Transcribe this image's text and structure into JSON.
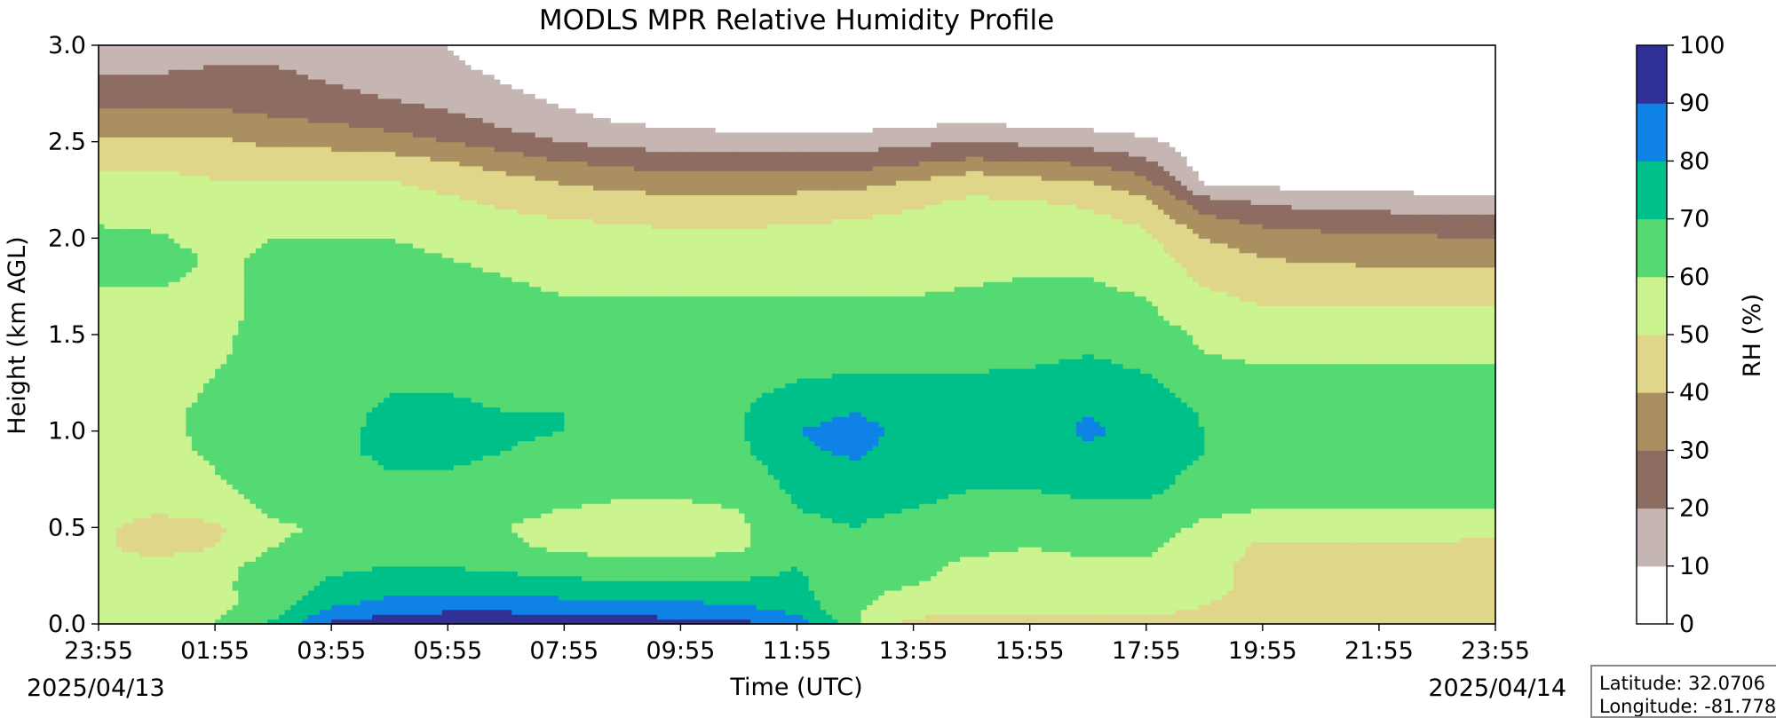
{
  "chart_data": {
    "type": "heatmap",
    "title": "MODLS MPR Relative Humidity Profile",
    "xlabel": "Time (UTC)",
    "ylabel": "Height (km AGL)",
    "x_ticks": [
      "23:55",
      "01:55",
      "03:55",
      "05:55",
      "07:55",
      "09:55",
      "11:55",
      "13:55",
      "15:55",
      "17:55",
      "19:55",
      "21:55",
      "23:55"
    ],
    "y_ticks": [
      "0.0",
      "0.5",
      "1.0",
      "1.5",
      "2.0",
      "2.5",
      "3.0"
    ],
    "xlim_hours": [
      0,
      24
    ],
    "ylim": [
      0,
      3.0
    ],
    "start_date": "2025/04/13",
    "end_date": "2025/04/14",
    "colorbar": {
      "label": "RH (%)",
      "ticks": [
        "0",
        "10",
        "20",
        "30",
        "40",
        "50",
        "60",
        "70",
        "80",
        "90",
        "100"
      ],
      "levels": [
        0,
        10,
        20,
        30,
        40,
        50,
        60,
        70,
        80,
        90,
        100
      ],
      "colors": [
        "#ffffff",
        "#c6b6b3",
        "#8d6c62",
        "#aa8f61",
        "#e0d68a",
        "#cbf38f",
        "#55da73",
        "#00c08a",
        "#0f82e6",
        "#303096"
      ]
    },
    "rh_field": {
      "heights_km": [
        0,
        0.05,
        0.1,
        0.2,
        0.3,
        0.4,
        0.5,
        0.6,
        0.7,
        0.8,
        0.9,
        1.0,
        1.1,
        1.2,
        1.3,
        1.4,
        1.5,
        1.6,
        1.7,
        1.8,
        1.9,
        2.0,
        2.1,
        2.2,
        2.3,
        2.4,
        2.5,
        2.6,
        2.7,
        2.8,
        2.9,
        3.0
      ],
      "times_hours": [
        0,
        1,
        2,
        3,
        4,
        5,
        6,
        7,
        8,
        9,
        10,
        11,
        12,
        13,
        14,
        15,
        16,
        17,
        18,
        19,
        20,
        21,
        22,
        23,
        24
      ],
      "rh_percent": [
        [
          55,
          55,
          60,
          72,
          92,
          95,
          96,
          96,
          95,
          94,
          93,
          93,
          88,
          62,
          46,
          43,
          43,
          42,
          42,
          42,
          42,
          42,
          42,
          42,
          45
        ],
        [
          55,
          55,
          58,
          68,
          85,
          90,
          92,
          92,
          90,
          90,
          88,
          86,
          80,
          60,
          52,
          50,
          50,
          50,
          50,
          48,
          48,
          48,
          48,
          48,
          48
        ],
        [
          55,
          55,
          57,
          65,
          78,
          84,
          85,
          85,
          84,
          82,
          82,
          80,
          75,
          62,
          55,
          55,
          55,
          55,
          55,
          50,
          48,
          48,
          48,
          48,
          48
        ],
        [
          55,
          56,
          58,
          64,
          72,
          75,
          75,
          74,
          73,
          72,
          72,
          72,
          72,
          62,
          60,
          58,
          55,
          57,
          60,
          52,
          48,
          48,
          48,
          48,
          48
        ],
        [
          55,
          55,
          57,
          64,
          68,
          70,
          70,
          68,
          66,
          64,
          64,
          66,
          70,
          65,
          62,
          58,
          56,
          58,
          58,
          52,
          48,
          48,
          48,
          48,
          46
        ],
        [
          52,
          45,
          50,
          60,
          63,
          65,
          65,
          62,
          58,
          55,
          55,
          58,
          68,
          68,
          64,
          62,
          60,
          62,
          62,
          55,
          48,
          48,
          48,
          48,
          45
        ],
        [
          52,
          45,
          48,
          58,
          62,
          64,
          64,
          60,
          56,
          55,
          55,
          58,
          68,
          70,
          66,
          64,
          62,
          64,
          64,
          58,
          56,
          56,
          56,
          56,
          55
        ],
        [
          55,
          52,
          55,
          62,
          65,
          66,
          66,
          63,
          60,
          58,
          58,
          60,
          70,
          72,
          70,
          68,
          66,
          68,
          68,
          62,
          60,
          60,
          60,
          60,
          60
        ],
        [
          56,
          56,
          58,
          64,
          66,
          68,
          68,
          66,
          64,
          62,
          62,
          64,
          72,
          74,
          72,
          70,
          70,
          72,
          72,
          66,
          64,
          64,
          64,
          64,
          64
        ],
        [
          57,
          57,
          60,
          65,
          67,
          70,
          70,
          68,
          66,
          65,
          65,
          66,
          74,
          78,
          74,
          72,
          72,
          74,
          74,
          68,
          66,
          66,
          66,
          66,
          66
        ],
        [
          58,
          58,
          61,
          66,
          68,
          72,
          72,
          70,
          68,
          67,
          67,
          68,
          78,
          82,
          75,
          73,
          73,
          78,
          75,
          70,
          67,
          67,
          67,
          67,
          67
        ],
        [
          58,
          58,
          62,
          66,
          68,
          72,
          72,
          71,
          70,
          69,
          68,
          69,
          80,
          84,
          76,
          74,
          74,
          82,
          76,
          70,
          67,
          67,
          67,
          67,
          67
        ],
        [
          58,
          58,
          62,
          66,
          68,
          71,
          71,
          70,
          70,
          69,
          68,
          69,
          76,
          80,
          75,
          74,
          74,
          80,
          75,
          69,
          66,
          66,
          66,
          66,
          66
        ],
        [
          57,
          57,
          61,
          65,
          67,
          70,
          70,
          69,
          68,
          68,
          67,
          68,
          72,
          74,
          73,
          73,
          73,
          75,
          73,
          67,
          65,
          65,
          65,
          65,
          65
        ],
        [
          57,
          57,
          60,
          64,
          66,
          68,
          68,
          67,
          66,
          66,
          66,
          66,
          69,
          70,
          70,
          70,
          71,
          72,
          70,
          64,
          62,
          62,
          62,
          62,
          62
        ],
        [
          56,
          56,
          59,
          63,
          65,
          67,
          67,
          66,
          65,
          65,
          65,
          65,
          66,
          67,
          67,
          68,
          68,
          70,
          68,
          60,
          58,
          58,
          58,
          58,
          58
        ],
        [
          56,
          56,
          59,
          62,
          64,
          66,
          66,
          65,
          64,
          64,
          64,
          64,
          65,
          65,
          65,
          65,
          66,
          67,
          65,
          58,
          55,
          55,
          55,
          55,
          55
        ],
        [
          56,
          56,
          58,
          62,
          64,
          65,
          65,
          64,
          63,
          63,
          62,
          62,
          62,
          62,
          62,
          63,
          64,
          65,
          62,
          55,
          52,
          52,
          52,
          52,
          52
        ],
        [
          58,
          58,
          58,
          62,
          63,
          64,
          63,
          62,
          60,
          60,
          60,
          60,
          60,
          60,
          60,
          61,
          62,
          62,
          60,
          52,
          48,
          48,
          48,
          48,
          48
        ],
        [
          62,
          62,
          58,
          62,
          63,
          63,
          62,
          60,
          58,
          57,
          57,
          57,
          58,
          58,
          58,
          59,
          60,
          60,
          57,
          48,
          45,
          45,
          44,
          44,
          44
        ],
        [
          65,
          65,
          58,
          62,
          62,
          62,
          60,
          58,
          56,
          55,
          55,
          55,
          56,
          55,
          56,
          57,
          58,
          58,
          54,
          45,
          40,
          38,
          37,
          36,
          36
        ],
        [
          64,
          62,
          55,
          60,
          60,
          60,
          58,
          56,
          54,
          53,
          52,
          52,
          53,
          53,
          54,
          55,
          56,
          56,
          52,
          40,
          35,
          33,
          32,
          31,
          31
        ],
        [
          58,
          56,
          53,
          56,
          56,
          56,
          54,
          52,
          50,
          49,
          48,
          48,
          49,
          50,
          52,
          54,
          54,
          52,
          48,
          32,
          27,
          25,
          24,
          23,
          22
        ],
        [
          55,
          55,
          52,
          54,
          54,
          54,
          51,
          48,
          45,
          43,
          42,
          42,
          43,
          45,
          48,
          51,
          50,
          48,
          42,
          22,
          18,
          15,
          14,
          13,
          12
        ],
        [
          52,
          52,
          50,
          50,
          50,
          50,
          47,
          43,
          39,
          36,
          35,
          35,
          35,
          36,
          40,
          46,
          42,
          40,
          32,
          8,
          6,
          5,
          5,
          4,
          4
        ],
        [
          48,
          48,
          48,
          46,
          45,
          44,
          40,
          35,
          30,
          27,
          25,
          24,
          24,
          25,
          28,
          32,
          30,
          28,
          22,
          5,
          5,
          4,
          4,
          4,
          4
        ],
        [
          42,
          42,
          42,
          38,
          37,
          34,
          30,
          25,
          20,
          17,
          15,
          14,
          14,
          15,
          18,
          20,
          18,
          16,
          12,
          4,
          4,
          4,
          4,
          4,
          4
        ],
        [
          35,
          35,
          35,
          32,
          30,
          27,
          24,
          18,
          13,
          10,
          8,
          7,
          6,
          6,
          8,
          10,
          8,
          7,
          5,
          3,
          3,
          3,
          3,
          3,
          3
        ],
        [
          28,
          28,
          28,
          26,
          24,
          21,
          18,
          13,
          9,
          6,
          5,
          4,
          4,
          4,
          5,
          6,
          5,
          4,
          3,
          3,
          3,
          3,
          3,
          3,
          3
        ],
        [
          22,
          22,
          24,
          22,
          20,
          17,
          14,
          10,
          6,
          4,
          4,
          3,
          3,
          3,
          3,
          4,
          3,
          3,
          3,
          3,
          3,
          3,
          3,
          3,
          3
        ],
        [
          18,
          18,
          20,
          20,
          18,
          14,
          11,
          8,
          5,
          4,
          3,
          3,
          3,
          3,
          3,
          3,
          3,
          3,
          3,
          3,
          3,
          3,
          3,
          3,
          3
        ],
        [
          16,
          16,
          18,
          18,
          16,
          13,
          10,
          7,
          4,
          3,
          3,
          3,
          3,
          3,
          3,
          3,
          3,
          3,
          3,
          3,
          3,
          3,
          3,
          3,
          3
        ]
      ]
    }
  },
  "info": {
    "latitude": "Latitude: 32.0706",
    "longitude": "Longitude: -81.778"
  }
}
